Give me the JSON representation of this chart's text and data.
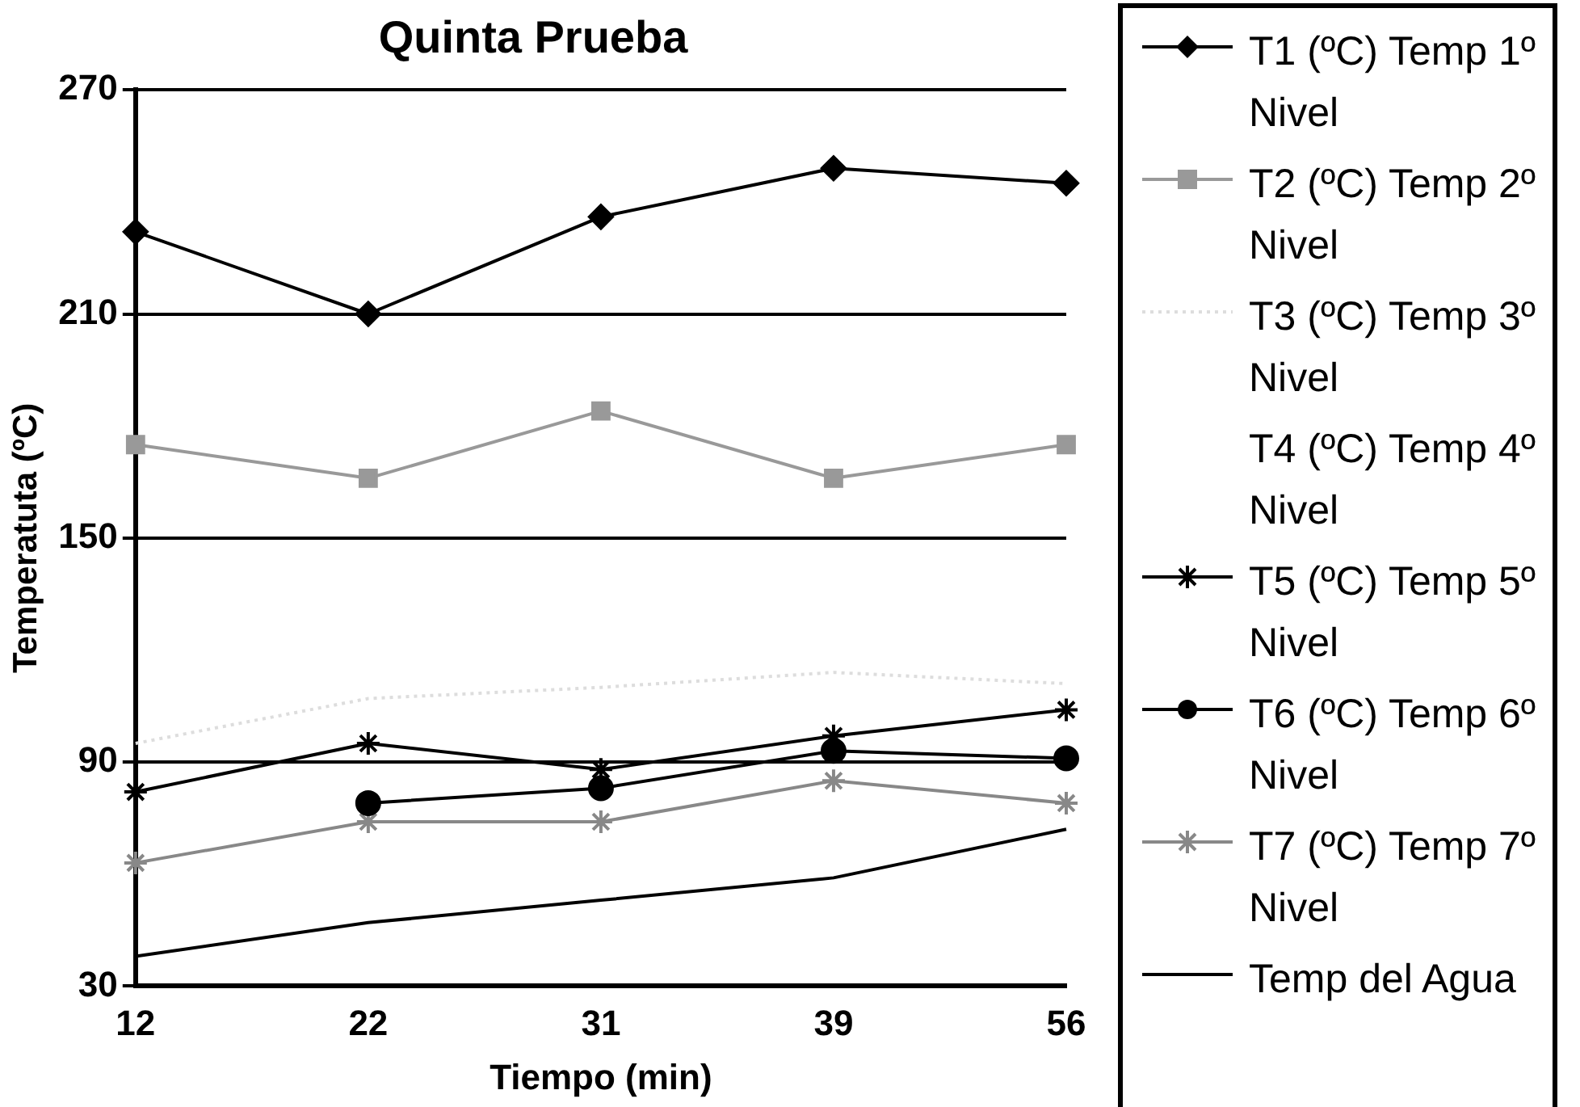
{
  "chart_data": {
    "type": "line",
    "title": "Quinta Prueba",
    "xlabel": "Tiempo (min)",
    "ylabel": "Temperatuta (ºC)",
    "categories": [
      "12",
      "22",
      "31",
      "39",
      "56"
    ],
    "ylim": [
      30,
      270
    ],
    "yticks": [
      30,
      90,
      150,
      210,
      270
    ],
    "grid": "y",
    "legend": "right",
    "series": [
      {
        "name": "T1 (ºC) Temp 1º Nivel",
        "color": "#000000",
        "marker": "diamond",
        "values": [
          232,
          210,
          236,
          249,
          245
        ]
      },
      {
        "name": "T2 (ºC) Temp 2º Nivel",
        "color": "#999999",
        "marker": "square",
        "values": [
          175,
          166,
          184,
          166,
          175
        ]
      },
      {
        "name": "T3 (ºC) Temp 3º Nivel",
        "color": "#dddddd",
        "marker": "none",
        "line_style": "dotted",
        "values": [
          95,
          107,
          110,
          114,
          111
        ]
      },
      {
        "name": "T4 (ºC) Temp 4º Nivel",
        "marker": "none",
        "values": [
          null,
          null,
          null,
          null,
          null
        ]
      },
      {
        "name": "T5 (ºC) Temp 5º Nivel",
        "color": "#000000",
        "marker": "cross",
        "values": [
          82,
          95,
          88,
          97,
          104
        ]
      },
      {
        "name": "T6 (ºC) Temp 6º Nivel",
        "color": "#000000",
        "marker": "circle",
        "values": [
          null,
          79,
          83,
          93,
          91
        ]
      },
      {
        "name": "T7 (ºC) Temp 7º Nivel",
        "color": "#888888",
        "marker": "cross",
        "values": [
          63,
          74,
          74,
          85,
          79
        ]
      },
      {
        "name": "Temp del Agua",
        "color": "#000000",
        "marker": "none",
        "values": [
          38,
          47,
          53,
          59,
          72
        ]
      }
    ]
  }
}
